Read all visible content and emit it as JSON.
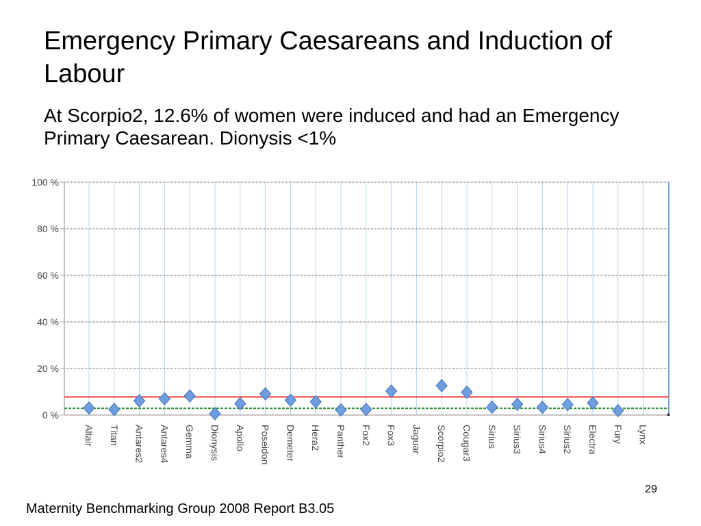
{
  "slide": {
    "title": "Emergency Primary Caesareans and Induction of Labour",
    "subtitle": "At Scorpio2, 12.6% of women were induced and had an Emergency Primary Caesarean. Dionysis <1%",
    "page_number": "29",
    "footer": "Maternity Benchmarking Group 2008 Report B3.05"
  },
  "colors": {
    "marker_fill": "#6f9ee0",
    "marker_stroke": "#3e6fb8",
    "grid_vertical": "#b8d3ea",
    "grid_horizontal": "#555555",
    "red_line": "#ef3b3b",
    "green_line": "#2f8f2f",
    "axis": "#888888",
    "tick_text": "#444444"
  },
  "chart_data": {
    "type": "scatter",
    "title": "",
    "xlabel": "",
    "ylabel": "",
    "ylim": [
      0,
      100
    ],
    "yticks": [
      "0 %",
      "20 %",
      "40 %",
      "60 %",
      "80 %",
      "100 %"
    ],
    "ytick_values": [
      0,
      20,
      40,
      60,
      80,
      100
    ],
    "grid": true,
    "categories": [
      "Altair",
      "Titan",
      "Antares2",
      "Antares4",
      "Gemma",
      "Dionysis",
      "Apollo",
      "Poseidon",
      "Demeter",
      "Hera2",
      "Panther",
      "Fox2",
      "Fox3",
      "Jaguar",
      "Scorpio2",
      "Cougar3",
      "Sirius",
      "Sirius3",
      "Sirius4",
      "Sirius2",
      "Electra",
      "Fury",
      "Lynx"
    ],
    "values": [
      3.0,
      2.4,
      6.1,
      7.0,
      8.2,
      0.6,
      4.9,
      9.1,
      6.4,
      5.7,
      2.2,
      2.4,
      10.3,
      null,
      12.6,
      9.8,
      3.4,
      4.6,
      3.3,
      4.5,
      5.2,
      1.9,
      null
    ],
    "reference_lines": [
      {
        "value": 7.8,
        "style": "solid",
        "color": "#ef3b3b"
      },
      {
        "value": 2.9,
        "style": "dashed",
        "color": "#2f8f2f"
      }
    ]
  }
}
